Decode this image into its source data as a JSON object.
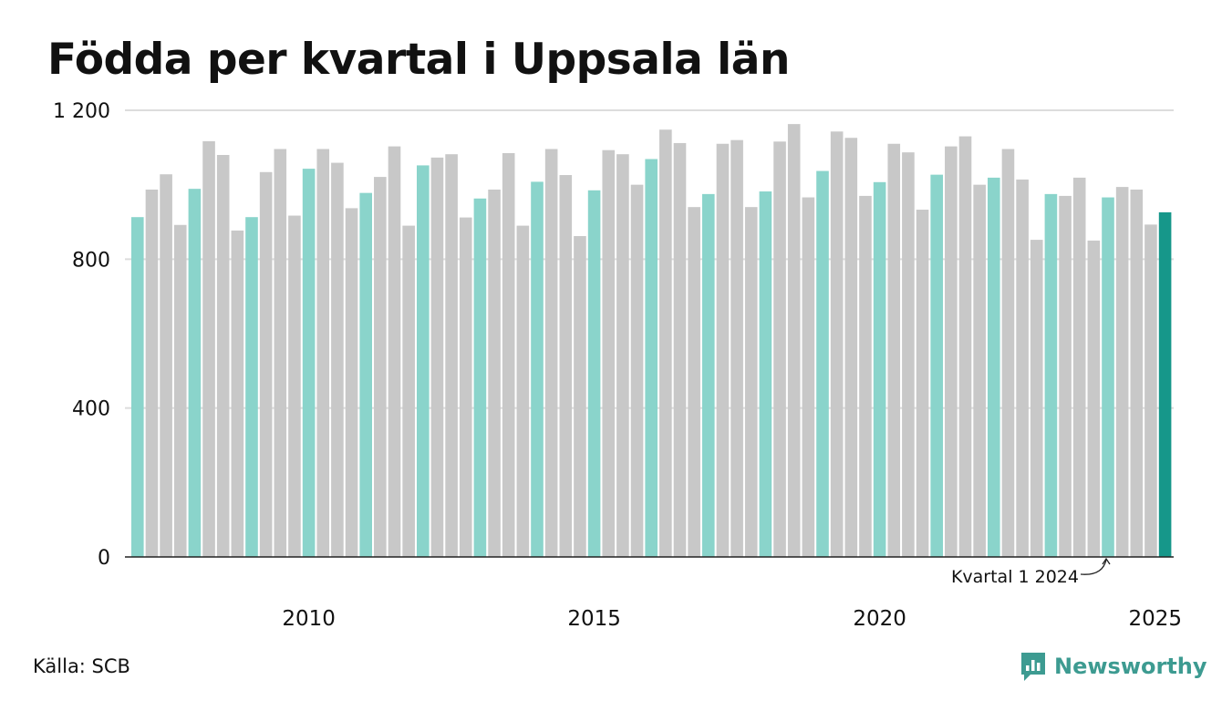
{
  "title": "Födda per kvartal i Uppsala län",
  "source": "Källa: SCB",
  "brand": "Newsworthy",
  "colors": {
    "q1": "#8ad4cb",
    "other": "#c8c8c8",
    "latest": "#16978a",
    "brand": "#3d9b91",
    "grid": "#dcdcdc",
    "axis": "#222222"
  },
  "chart_data": {
    "type": "bar",
    "x_start": "2007 Q1",
    "y_ticks": [
      0,
      400,
      800,
      1200
    ],
    "y_tick_labels": [
      "0",
      "400",
      "800",
      "1 200"
    ],
    "ylim": [
      0,
      1200
    ],
    "x_tick_labels": [
      {
        "year": 2010,
        "label": "2010"
      },
      {
        "year": 2015,
        "label": "2015"
      },
      {
        "year": 2020,
        "label": "2020"
      },
      {
        "year": 2025,
        "label": "2025"
      }
    ],
    "annotation": {
      "label": "Kvartal 1 2024",
      "target": "2024 Q1"
    },
    "series": [
      {
        "year": 2007,
        "quarters": [
          913,
          987,
          1028,
          892
        ]
      },
      {
        "year": 2008,
        "quarters": [
          989,
          1117,
          1080,
          877
        ]
      },
      {
        "year": 2009,
        "quarters": [
          913,
          1034,
          1096,
          917
        ]
      },
      {
        "year": 2010,
        "quarters": [
          1043,
          1096,
          1059,
          937
        ]
      },
      {
        "year": 2011,
        "quarters": [
          978,
          1021,
          1103,
          890
        ]
      },
      {
        "year": 2012,
        "quarters": [
          1052,
          1073,
          1082,
          912
        ]
      },
      {
        "year": 2013,
        "quarters": [
          963,
          987,
          1085,
          890
        ]
      },
      {
        "year": 2014,
        "quarters": [
          1008,
          1096,
          1026,
          862
        ]
      },
      {
        "year": 2015,
        "quarters": [
          985,
          1093,
          1082,
          1000
        ]
      },
      {
        "year": 2016,
        "quarters": [
          1069,
          1148,
          1112,
          940
        ]
      },
      {
        "year": 2017,
        "quarters": [
          975,
          1110,
          1120,
          940
        ]
      },
      {
        "year": 2018,
        "quarters": [
          982,
          1116,
          1163,
          966
        ]
      },
      {
        "year": 2019,
        "quarters": [
          1037,
          1143,
          1126,
          970
        ]
      },
      {
        "year": 2020,
        "quarters": [
          1007,
          1110,
          1087,
          933
        ]
      },
      {
        "year": 2021,
        "quarters": [
          1027,
          1103,
          1130,
          1000
        ]
      },
      {
        "year": 2022,
        "quarters": [
          1019,
          1096,
          1014,
          852
        ]
      },
      {
        "year": 2023,
        "quarters": [
          975,
          970,
          1019,
          850
        ]
      },
      {
        "year": 2024,
        "quarters": [
          966,
          994,
          987,
          893
        ]
      },
      {
        "year": 2025,
        "quarters": [
          926
        ]
      }
    ]
  }
}
